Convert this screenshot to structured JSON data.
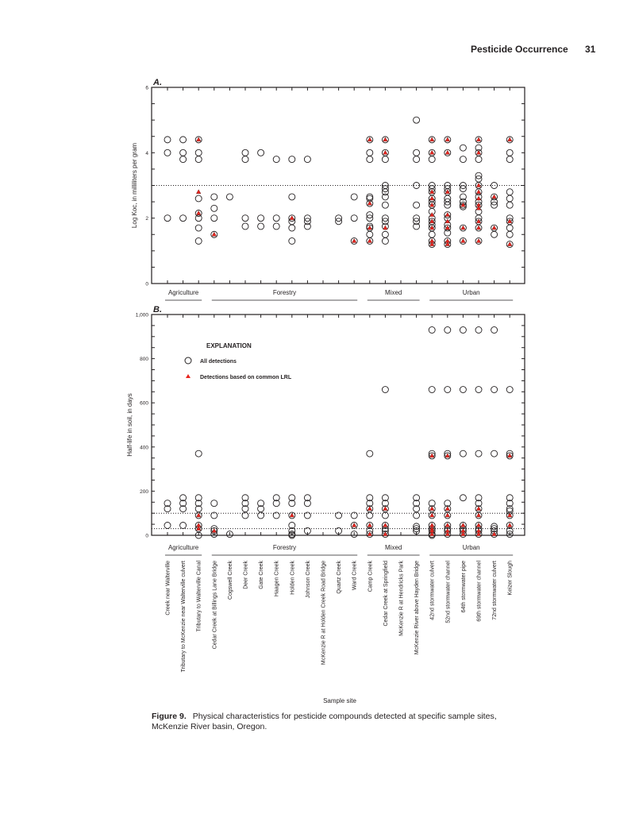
{
  "header": {
    "section": "Pesticide Occurrence",
    "page_number": "31"
  },
  "caption": {
    "label": "Figure 9.",
    "text": "Physical characteristics for pesticide compounds detected at specific sample sites, McKenzie River basin, Oregon."
  },
  "xlabel": "Sample site",
  "sites": [
    "Creek near Walterville",
    "Tributary to McKenzie near Walterville culvert",
    "Tributary to Walterville Canal",
    "Cedar Creek at Billings Lane Bridge",
    "Cogswell Creek",
    "Deer Creek",
    "Gate Creek",
    "Haagen Creek",
    "Holden Creek",
    "Johnson Creek",
    "McKenzie R at Holden Creek Road Bridge",
    "Quartz Creek",
    "Ward Creek",
    "Camp Creek",
    "Cedar Creek at Springfield",
    "McKenzie R at Hendricks Park",
    "McKenzie River above Hayden Bridge",
    "42nd stormwater culvert",
    "52nd stormwater channel",
    "64th stormwater pipe",
    "69th stormwater channel",
    "72nd stormwater culvert",
    "Keizer Slough"
  ],
  "land_use_groups": [
    {
      "label": "Agriculture",
      "first_site": 0,
      "last_site": 2
    },
    {
      "label": "Forestry",
      "first_site": 3,
      "last_site": 12
    },
    {
      "label": "Mixed",
      "first_site": 13,
      "last_site": 16
    },
    {
      "label": "Urban",
      "first_site": 17,
      "last_site": 22
    }
  ],
  "legend": {
    "title": "EXPLANATION",
    "items": [
      "All detections",
      "Detections based on common LRL"
    ]
  },
  "colors": {
    "triangle": "#e8251f",
    "ink": "#231f20"
  },
  "chart_data": [
    {
      "type": "scatter",
      "panel": "A.",
      "ylabel": "Log Koc, in milliliters per gram",
      "ylim": [
        0,
        6
      ],
      "yticks": [
        "0",
        "2",
        "4",
        "6"
      ],
      "reference_lines": [
        3
      ],
      "all_detections": [
        [
          4.4,
          4.0,
          2.0
        ],
        [
          4.4,
          4.0,
          3.8,
          2.0
        ],
        [
          4.4,
          4.0,
          3.8,
          2.6,
          2.15,
          2.0,
          1.7,
          1.3
        ],
        [
          2.65,
          2.3,
          2.0,
          1.5
        ],
        [
          2.65
        ],
        [
          4.0,
          3.8,
          2.0,
          1.75
        ],
        [
          4.0,
          2.0,
          1.75
        ],
        [
          3.8,
          2.0,
          1.75
        ],
        [
          3.8,
          2.65,
          2.0,
          1.9,
          1.7,
          1.3
        ],
        [
          3.8,
          2.0,
          1.9,
          1.75
        ],
        [],
        [
          2.0,
          1.9
        ],
        [
          2.65,
          2.0,
          1.3
        ],
        [
          4.4,
          4.0,
          3.8,
          2.65,
          2.6,
          2.45,
          2.1,
          2.0,
          1.75,
          1.7,
          1.5,
          1.3
        ],
        [
          4.4,
          4.0,
          3.8,
          3.0,
          2.9,
          2.8,
          2.65,
          2.4,
          2.0,
          1.9,
          1.75,
          1.5,
          1.3
        ],
        [],
        [
          5.0,
          4.0,
          3.8,
          3.0,
          2.4,
          2.0,
          1.9,
          1.75
        ],
        [
          4.4,
          4.0,
          3.8,
          3.0,
          2.9,
          2.8,
          2.6,
          2.5,
          2.4,
          2.2,
          2.0,
          1.9,
          1.8,
          1.7,
          1.5,
          1.3,
          1.2
        ],
        [
          4.4,
          4.0,
          3.0,
          2.9,
          2.8,
          2.6,
          2.5,
          2.4,
          2.1,
          2.0,
          1.8,
          1.7,
          1.55,
          1.3,
          1.2
        ],
        [
          4.15,
          3.8,
          3.0,
          2.9,
          2.65,
          2.5,
          2.4,
          2.35,
          1.7,
          1.3
        ],
        [
          4.4,
          4.15,
          4.0,
          3.8,
          3.3,
          3.2,
          3.0,
          2.8,
          2.65,
          2.5,
          2.4,
          2.2,
          2.0,
          1.9,
          1.7,
          1.3
        ],
        [
          3.0,
          2.65,
          2.5,
          2.4,
          1.7,
          1.5
        ],
        [
          4.4,
          4.0,
          3.8,
          2.8,
          2.6,
          2.4,
          2.0,
          1.9,
          1.7,
          1.5,
          1.2
        ]
      ],
      "common_lrl_detections": [
        [],
        [],
        [
          4.4,
          2.8,
          2.15
        ],
        [
          1.5
        ],
        [],
        [],
        [],
        [],
        [
          2.0
        ],
        [],
        [],
        [],
        [
          1.3
        ],
        [
          4.4,
          2.45,
          1.7,
          1.3
        ],
        [
          4.4,
          4.0,
          1.7
        ],
        [],
        [],
        [
          4.4,
          4.0,
          2.8,
          2.6,
          2.4,
          2.1,
          1.9,
          1.7,
          1.3,
          1.2
        ],
        [
          4.4,
          4.0,
          2.8,
          2.1,
          1.9,
          1.7,
          1.3,
          1.2
        ],
        [
          2.4,
          1.7,
          1.3
        ],
        [
          4.4,
          4.0,
          3.0,
          2.8,
          2.6,
          2.4,
          2.3,
          1.9,
          1.7,
          1.3
        ],
        [
          2.65,
          1.7
        ],
        [
          4.4,
          1.9,
          1.2
        ]
      ]
    },
    {
      "type": "scatter",
      "panel": "B.",
      "ylabel": "Half-life in soil, in days",
      "ylim": [
        0,
        1000
      ],
      "yticks": [
        "0",
        "200",
        "400",
        "600",
        "800",
        "1,000"
      ],
      "reference_lines": [
        100,
        30
      ],
      "all_detections": [
        [
          145,
          120,
          45
        ],
        [
          170,
          145,
          120,
          45
        ],
        [
          370,
          170,
          145,
          120,
          90,
          45,
          30,
          0
        ],
        [
          145,
          90,
          30,
          20,
          5
        ],
        [
          5
        ],
        [
          170,
          145,
          120,
          90
        ],
        [
          145,
          120,
          90
        ],
        [
          170,
          145,
          90
        ],
        [
          170,
          145,
          90,
          45,
          20,
          5,
          0
        ],
        [
          170,
          145,
          90,
          20
        ],
        [],
        [
          90,
          20
        ],
        [
          90,
          45,
          5
        ],
        [
          370,
          170,
          145,
          120,
          90,
          45,
          20,
          5
        ],
        [
          660,
          170,
          145,
          120,
          90,
          45,
          30,
          20,
          5
        ],
        [],
        [
          170,
          145,
          120,
          90,
          40,
          30,
          20
        ],
        [
          930,
          660,
          370,
          360,
          145,
          120,
          90,
          45,
          30,
          20,
          5,
          0
        ],
        [
          930,
          660,
          370,
          360,
          145,
          120,
          90,
          45,
          30,
          20,
          5
        ],
        [
          930,
          660,
          370,
          170,
          45,
          30,
          20,
          5
        ],
        [
          930,
          660,
          370,
          170,
          145,
          120,
          90,
          45,
          30,
          20,
          5
        ],
        [
          930,
          660,
          370,
          40,
          30,
          20,
          5
        ],
        [
          660,
          370,
          360,
          170,
          145,
          120,
          110,
          90,
          45,
          20,
          5
        ]
      ],
      "common_lrl_detections": [
        [],
        [],
        [
          90,
          45,
          30
        ],
        [
          20
        ],
        [],
        [],
        [],
        [],
        [
          90
        ],
        [],
        [],
        [],
        [
          45
        ],
        [
          120,
          45,
          5
        ],
        [
          120,
          45,
          5
        ],
        [],
        [],
        [
          360,
          120,
          90,
          45,
          30,
          20,
          5
        ],
        [
          360,
          120,
          90,
          45,
          20,
          5
        ],
        [
          45,
          20,
          5
        ],
        [
          120,
          90,
          45,
          20,
          5
        ],
        [
          5
        ],
        [
          360,
          90,
          45
        ]
      ]
    }
  ]
}
